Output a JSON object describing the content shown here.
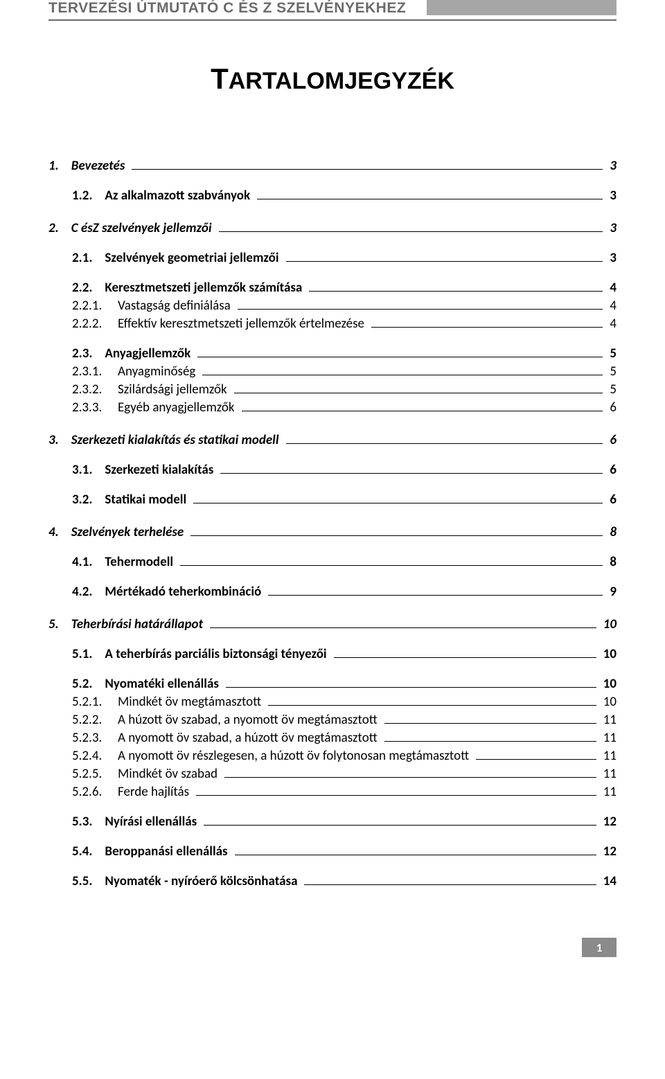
{
  "header": {
    "running_title": "TERVEZÉSI ÚTMUTATÓ C ÉS Z SZELVÉNYEKHEZ"
  },
  "title": {
    "first_char": "T",
    "rest": "ARTALOMJEGYZÉK"
  },
  "toc": [
    {
      "lvl": 1,
      "num": "1.",
      "label": "Bevezetés",
      "page": "3"
    },
    {
      "lvl": 2,
      "num": "1.2.",
      "label": "Az alkalmazott szabványok",
      "page": "3"
    },
    {
      "lvl": 1,
      "num": "2.",
      "label": "C ésZ szelvények jellemzői",
      "page": "3"
    },
    {
      "lvl": 2,
      "num": "2.1.",
      "label": "Szelvények geometriai jellemzői",
      "page": "3"
    },
    {
      "lvl": 2,
      "num": "2.2.",
      "label": "Keresztmetszeti jellemzők számítása",
      "page": "4"
    },
    {
      "lvl": 3,
      "num": "2.2.1.",
      "label": "Vastagság definiálása",
      "page": "4"
    },
    {
      "lvl": 3,
      "num": "2.2.2.",
      "label": "Effektív keresztmetszeti jellemzők értelmezése",
      "page": "4"
    },
    {
      "lvl": 2,
      "num": "2.3.",
      "label": "Anyagjellemzők",
      "page": "5"
    },
    {
      "lvl": 3,
      "num": "2.3.1.",
      "label": "Anyagminőség",
      "page": "5"
    },
    {
      "lvl": 3,
      "num": "2.3.2.",
      "label": "Szilárdsági jellemzők",
      "page": "5"
    },
    {
      "lvl": 3,
      "num": "2.3.3.",
      "label": "Egyéb anyagjellemzők",
      "page": "6"
    },
    {
      "lvl": 1,
      "num": "3.",
      "label": "Szerkezeti kialakítás és statikai modell",
      "page": "6"
    },
    {
      "lvl": 2,
      "num": "3.1.",
      "label": "Szerkezeti kialakítás",
      "page": "6"
    },
    {
      "lvl": 2,
      "num": "3.2.",
      "label": "Statikai modell",
      "page": "6"
    },
    {
      "lvl": 1,
      "num": "4.",
      "label": "Szelvények terhelése",
      "page": "8"
    },
    {
      "lvl": 2,
      "num": "4.1.",
      "label": "Tehermodell",
      "page": "8"
    },
    {
      "lvl": 2,
      "num": "4.2.",
      "label": "Mértékadó teherkombináció",
      "page": "9"
    },
    {
      "lvl": 1,
      "num": "5.",
      "label": "Teherbírási határállapot",
      "page": "10"
    },
    {
      "lvl": 2,
      "num": "5.1.",
      "label": "A teherbírás parciális biztonsági tényezői",
      "page": "10"
    },
    {
      "lvl": 2,
      "num": "5.2.",
      "label": "Nyomatéki ellenállás",
      "page": "10"
    },
    {
      "lvl": 3,
      "num": "5.2.1.",
      "label": "Mindkét öv megtámasztott",
      "page": "10"
    },
    {
      "lvl": 3,
      "num": "5.2.2.",
      "label": "A húzott öv szabad, a nyomott öv megtámasztott",
      "page": "11"
    },
    {
      "lvl": 3,
      "num": "5.2.3.",
      "label": "A nyomott öv szabad, a húzott öv megtámasztott",
      "page": "11"
    },
    {
      "lvl": 3,
      "num": "5.2.4.",
      "label": "A nyomott öv részlegesen, a húzott öv folytonosan megtámasztott",
      "page": "11"
    },
    {
      "lvl": 3,
      "num": "5.2.5.",
      "label": "Mindkét öv szabad",
      "page": "11"
    },
    {
      "lvl": 3,
      "num": "5.2.6.",
      "label": "Ferde hajlítás",
      "page": "11"
    },
    {
      "lvl": 2,
      "num": "5.3.",
      "label": "Nyírási ellenállás",
      "page": "12"
    },
    {
      "lvl": 2,
      "num": "5.4.",
      "label": "Beroppanási ellenállás",
      "page": "12"
    },
    {
      "lvl": 2,
      "num": "5.5.",
      "label": "Nyomaték - nyíróerő kölcsönhatása",
      "page": "14"
    }
  ],
  "footer": {
    "page_number": "1"
  }
}
